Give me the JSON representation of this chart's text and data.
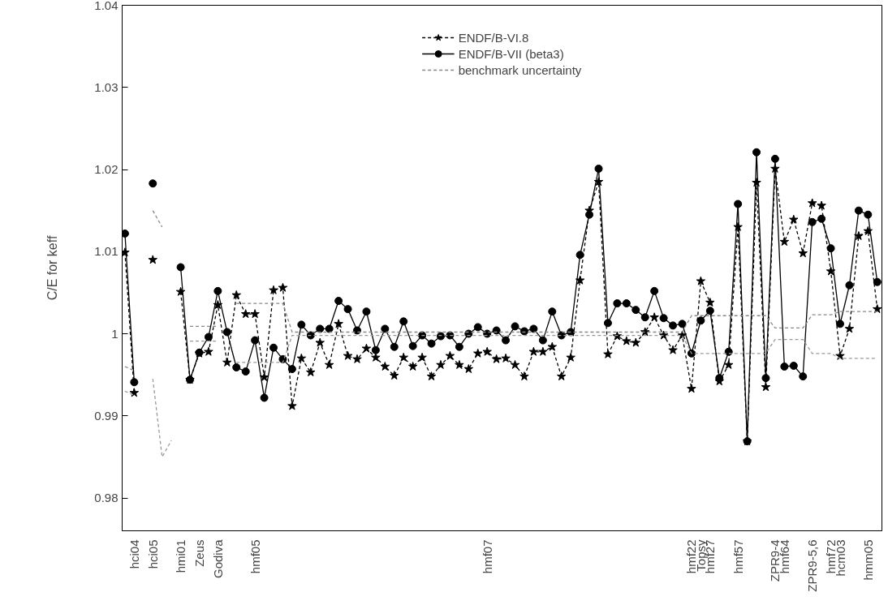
{
  "chart_data": {
    "type": "line",
    "ylabel": "C/E for keff",
    "categories": [
      null,
      "hci04",
      null,
      "hci05",
      null,
      null,
      "hmi01",
      null,
      "Zeus",
      null,
      "Godiva",
      null,
      null,
      null,
      "hmf05",
      null,
      null,
      null,
      null,
      null,
      null,
      null,
      null,
      null,
      null,
      null,
      null,
      null,
      null,
      null,
      null,
      null,
      null,
      null,
      null,
      null,
      null,
      null,
      null,
      "hmf07",
      null,
      null,
      null,
      null,
      null,
      null,
      null,
      null,
      null,
      null,
      null,
      null,
      null,
      null,
      null,
      null,
      null,
      null,
      null,
      null,
      null,
      "hmf22",
      "Topsy",
      "hmf27",
      null,
      null,
      "hmf57",
      null,
      null,
      null,
      "ZPR9-4",
      "hmf64",
      null,
      null,
      "ZPR9-5,6",
      null,
      "hmf72",
      "hcm03",
      null,
      null,
      "hmm05",
      null
    ],
    "ylim": [
      0.976,
      1.04
    ],
    "yticks": [
      0.98,
      0.99,
      1,
      1.01,
      1.02,
      1.03,
      1.04
    ],
    "legend": "top",
    "series": [
      {
        "name": "ENDF/B-VI.8",
        "color": "#000000",
        "marker": "star",
        "line_style": "dotted",
        "values": [
          1.0099,
          0.9928,
          null,
          1.009,
          null,
          null,
          1.0051,
          0.9944,
          0.9976,
          0.9978,
          1.0035,
          0.9965,
          1.0047,
          1.0024,
          1.0024,
          0.9947,
          1.0053,
          1.0056,
          0.9912,
          0.997,
          0.9953,
          0.9989,
          0.9962,
          1.0012,
          0.9973,
          0.9969,
          0.9982,
          0.9971,
          0.996,
          0.9949,
          0.9971,
          0.996,
          0.9971,
          0.9948,
          0.9962,
          0.9973,
          0.9962,
          0.9957,
          0.9976,
          0.9978,
          0.9969,
          0.997,
          0.9962,
          0.9948,
          0.9978,
          0.9978,
          0.9984,
          0.9948,
          0.9971,
          1.0065,
          1.015,
          1.0185,
          0.9975,
          0.9997,
          0.9991,
          0.9989,
          1.0002,
          1.002,
          0.9998,
          0.998,
          0.9998,
          0.9933,
          1.0064,
          1.0038,
          0.9942,
          0.9962,
          1.013,
          0.9869,
          1.0184,
          0.9935,
          1.0201,
          1.0112,
          1.0139,
          1.0098,
          1.0159,
          1.0156,
          1.0076,
          0.9973,
          1.0006,
          1.0119,
          1.0125,
          1.003
        ]
      },
      {
        "name": "ENDF/B-VII (beta3)",
        "color": "#000000",
        "marker": "circle",
        "line_style": "solid",
        "values": [
          1.0122,
          0.9941,
          null,
          1.0183,
          null,
          null,
          1.0081,
          0.9944,
          0.9977,
          0.9996,
          1.0052,
          1.0002,
          0.9959,
          0.9954,
          0.9992,
          0.9922,
          0.9983,
          0.9969,
          0.9957,
          1.0011,
          0.9998,
          1.0006,
          1.0006,
          1.004,
          1.003,
          1.0004,
          1.0027,
          0.998,
          1.0006,
          0.9984,
          1.0015,
          0.9985,
          0.9998,
          0.9988,
          0.9997,
          0.9998,
          0.9984,
          1.0,
          1.0008,
          1.0,
          1.0004,
          0.9992,
          1.0009,
          1.0003,
          1.0006,
          0.9992,
          1.0027,
          0.9998,
          1.0002,
          1.0096,
          1.0145,
          1.0201,
          1.0013,
          1.0037,
          1.0037,
          1.0029,
          1.002,
          1.0052,
          1.0019,
          1.001,
          1.0012,
          0.9976,
          1.0016,
          1.0028,
          0.9946,
          0.9978,
          1.0158,
          0.9869,
          1.0221,
          0.9946,
          1.0213,
          0.996,
          0.9961,
          0.9948,
          1.0136,
          1.014,
          1.0104,
          1.0012,
          1.0059,
          1.015,
          1.0145,
          1.0063
        ]
      },
      {
        "name": "benchmark uncertainty",
        "color": "#888888",
        "marker": "none",
        "line_style": "dotted",
        "values": [
          0.996,
          0.9955,
          null,
          1.015,
          1.013,
          null,
          null,
          1.0009,
          1.0009,
          1.0009,
          1.0009,
          null,
          1.0037,
          1.0037,
          1.0037,
          1.0037,
          1.0037,
          1.0037,
          1.0002,
          1.0002,
          1.0002,
          1.0002,
          1.0002,
          1.0002,
          1.0002,
          1.0002,
          1.0002,
          1.0002,
          1.0002,
          1.0002,
          1.0002,
          1.0002,
          1.0002,
          1.0002,
          1.0002,
          1.0002,
          1.0002,
          1.0002,
          1.0002,
          1.0002,
          1.0002,
          1.0002,
          1.0002,
          1.0002,
          1.0002,
          1.0002,
          1.0002,
          1.0002,
          1.0002,
          1.0002,
          1.0002,
          1.0002,
          1.0002,
          1.0002,
          1.0002,
          1.0002,
          1.0002,
          1.0002,
          1.0002,
          1.0002,
          1.0002,
          1.0022,
          1.0022,
          1.0022,
          1.0022,
          1.0022,
          1.0022,
          1.0022,
          1.0022,
          1.0022,
          1.0007,
          1.0007,
          1.0007,
          1.0007,
          1.0023,
          1.0023,
          1.0023,
          1.0027,
          1.0027,
          1.0027,
          1.0027,
          1.0027
        ]
      },
      {
        "color": "#9a9a9a",
        "marker": "none",
        "line_style": "dotted",
        "values": [
          0.993,
          0.9925,
          null,
          0.9945,
          0.985,
          0.987,
          null,
          0.9991,
          0.9991,
          0.9991,
          0.9991,
          null,
          0.9965,
          0.9965,
          0.9965,
          0.9965,
          0.9965,
          0.9965,
          0.9998,
          0.9998,
          0.9998,
          0.9998,
          0.9998,
          0.9998,
          0.9998,
          0.9998,
          0.9998,
          0.9998,
          0.9998,
          0.9998,
          0.9998,
          0.9998,
          0.9998,
          0.9998,
          0.9998,
          0.9998,
          0.9998,
          0.9998,
          0.9998,
          0.9998,
          0.9998,
          0.9998,
          0.9998,
          0.9998,
          0.9998,
          0.9998,
          0.9998,
          0.9998,
          0.9998,
          0.9998,
          0.9998,
          0.9998,
          0.9998,
          0.9998,
          0.9998,
          0.9998,
          0.9998,
          0.9998,
          0.9998,
          0.9998,
          0.9998,
          0.9976,
          0.9976,
          0.9976,
          0.9976,
          0.9976,
          0.9976,
          0.9976,
          0.9976,
          0.9976,
          0.9993,
          0.9993,
          0.9993,
          0.9993,
          0.9976,
          0.9976,
          0.9976,
          0.997,
          0.997,
          0.997,
          0.997,
          0.997
        ]
      }
    ]
  }
}
